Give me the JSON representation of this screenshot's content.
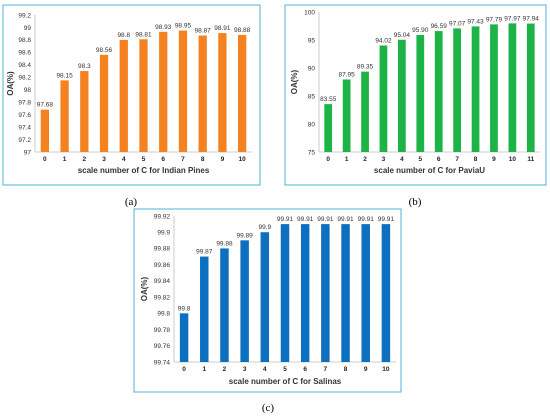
{
  "chart_data": [
    {
      "type": "bar",
      "caption": "(a)",
      "categories": [
        "0",
        "1",
        "2",
        "3",
        "4",
        "5",
        "6",
        "7",
        "8",
        "9",
        "10"
      ],
      "values": [
        97.68,
        98.15,
        98.3,
        98.56,
        98.8,
        98.81,
        98.93,
        98.95,
        98.87,
        98.91,
        98.88
      ],
      "labels": [
        "97.68",
        "98.15",
        "98.3",
        "98.56",
        "98.8",
        "98.81",
        "98.93",
        "98.95",
        "98.87",
        "98.91",
        "98.88"
      ],
      "xlabel": "scale number of C for Indian Pines",
      "ylabel": "OA(%)",
      "ylim": [
        97,
        99.2
      ],
      "yticks": [
        "97",
        "97.2",
        "97.4",
        "97.6",
        "97.8",
        "98",
        "98.2",
        "98.4",
        "98.6",
        "98.8",
        "99",
        "99.2"
      ],
      "color": "#f58220",
      "grid": false
    },
    {
      "type": "bar",
      "caption": "(b)",
      "categories": [
        "0",
        "1",
        "2",
        "3",
        "4",
        "5",
        "6",
        "7",
        "8",
        "9",
        "10",
        "11"
      ],
      "values": [
        83.55,
        87.95,
        89.35,
        94.02,
        95.04,
        95.9,
        96.59,
        97.07,
        97.43,
        97.79,
        97.97,
        97.94
      ],
      "labels": [
        "83.55",
        "87.95",
        "89.35",
        "94.02",
        "95.04",
        "95.90",
        "96.59",
        "97.07",
        "97.43",
        "97.79",
        "97.97",
        "97.94"
      ],
      "xlabel": "scale number of C for PaviaU",
      "ylabel": "OA(%)",
      "ylim": [
        75,
        100
      ],
      "yticks": [
        "75",
        "80",
        "85",
        "90",
        "95",
        "100"
      ],
      "color": "#1db347",
      "grid": false
    },
    {
      "type": "bar",
      "caption": "(c)",
      "categories": [
        "0",
        "1",
        "2",
        "3",
        "4",
        "5",
        "6",
        "7",
        "8",
        "9",
        "10"
      ],
      "values": [
        99.8,
        99.87,
        99.88,
        99.89,
        99.9,
        99.91,
        99.91,
        99.91,
        99.91,
        99.91,
        99.91
      ],
      "labels": [
        "99.8",
        "99.87",
        "99.88",
        "99.89",
        "99.9",
        "99.91",
        "99.91",
        "99.91",
        "99.91",
        "99.91",
        "99.91"
      ],
      "xlabel": "scale number of C for Salinas",
      "ylabel": "OA(%)",
      "ylim": [
        99.74,
        99.92
      ],
      "yticks": [
        "99.74",
        "99.76",
        "99.78",
        "99.8",
        "99.82",
        "99.84",
        "99.86",
        "99.88",
        "99.9",
        "99.92"
      ],
      "color": "#0d6fc0",
      "grid": false
    }
  ]
}
